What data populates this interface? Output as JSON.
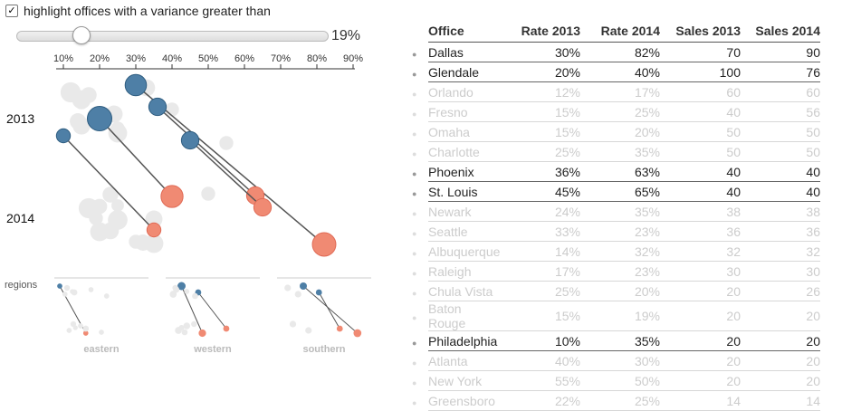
{
  "control": {
    "checkbox_label": "highlight offices with a variance greater than",
    "checked": true,
    "threshold": 19,
    "threshold_label": "19%",
    "slider_min": 0,
    "slider_max": 90
  },
  "labels": {
    "y2013": "2013",
    "y2014": "2014",
    "regions": "regions"
  },
  "colors": {
    "rate2013": "#4e7fa6",
    "rate2014": "#f08a73",
    "faint": "#e9e9e9",
    "line": "#555555"
  },
  "chart_data": {
    "type": "slope",
    "x_ticks": [
      "10%",
      "20%",
      "30%",
      "40%",
      "50%",
      "60%",
      "70%",
      "80%",
      "90%"
    ],
    "xlim": [
      0.1,
      0.9
    ],
    "regions": [
      {
        "name": "eastern",
        "offices": [
          "Philadelphia",
          "Newark",
          "Raleigh",
          "Baton Rouge",
          "Atlanta",
          "New York",
          "Greensboro"
        ]
      },
      {
        "name": "western",
        "offices": [
          "Glendale",
          "Phoenix",
          "Albuquerque",
          "Orlando",
          "Fresno",
          "Seattle",
          "Chula Vista"
        ]
      },
      {
        "name": "southern",
        "offices": [
          "Dallas",
          "St. Louis",
          "Omaha",
          "Charlotte"
        ]
      }
    ]
  },
  "table": {
    "headers": [
      "Office",
      "Rate 2013",
      "Rate 2014",
      "Sales 2013",
      "Sales 2014"
    ],
    "rows": [
      {
        "office": "Dallas",
        "r13": "30%",
        "r14": "82%",
        "s13": "70",
        "s14": "90"
      },
      {
        "office": "Glendale",
        "r13": "20%",
        "r14": "40%",
        "s13": "100",
        "s14": "76"
      },
      {
        "office": "Orlando",
        "r13": "12%",
        "r14": "17%",
        "s13": "60",
        "s14": "60"
      },
      {
        "office": "Fresno",
        "r13": "15%",
        "r14": "25%",
        "s13": "40",
        "s14": "56"
      },
      {
        "office": "Omaha",
        "r13": "15%",
        "r14": "20%",
        "s13": "50",
        "s14": "50"
      },
      {
        "office": "Charlotte",
        "r13": "25%",
        "r14": "35%",
        "s13": "50",
        "s14": "50"
      },
      {
        "office": "Phoenix",
        "r13": "36%",
        "r14": "63%",
        "s13": "40",
        "s14": "40"
      },
      {
        "office": "St. Louis",
        "r13": "45%",
        "r14": "65%",
        "s13": "40",
        "s14": "40"
      },
      {
        "office": "Newark",
        "r13": "24%",
        "r14": "35%",
        "s13": "38",
        "s14": "38"
      },
      {
        "office": "Seattle",
        "r13": "33%",
        "r14": "23%",
        "s13": "36",
        "s14": "36"
      },
      {
        "office": "Albuquerque",
        "r13": "14%",
        "r14": "32%",
        "s13": "32",
        "s14": "32"
      },
      {
        "office": "Raleigh",
        "r13": "17%",
        "r14": "23%",
        "s13": "30",
        "s14": "30"
      },
      {
        "office": "Chula Vista",
        "r13": "25%",
        "r14": "20%",
        "s13": "20",
        "s14": "26"
      },
      {
        "office": "Baton Rouge",
        "r13": "15%",
        "r14": "19%",
        "s13": "20",
        "s14": "20"
      },
      {
        "office": "Philadelphia",
        "r13": "10%",
        "r14": "35%",
        "s13": "20",
        "s14": "20"
      },
      {
        "office": "Atlanta",
        "r13": "40%",
        "r14": "30%",
        "s13": "20",
        "s14": "20"
      },
      {
        "office": "New York",
        "r13": "55%",
        "r14": "50%",
        "s13": "20",
        "s14": "20"
      },
      {
        "office": "Greensboro",
        "r13": "22%",
        "r14": "25%",
        "s13": "14",
        "s14": "14"
      }
    ]
  }
}
